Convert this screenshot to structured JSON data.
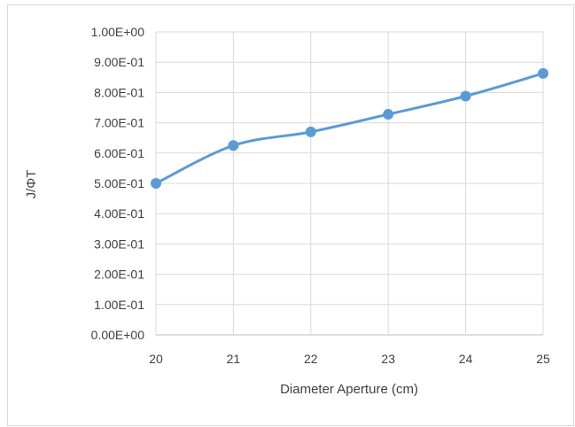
{
  "chart_data": {
    "type": "line",
    "title": "",
    "xlabel": "Diameter Aperture (cm)",
    "ylabel": "J/ΦT",
    "x": [
      20,
      21,
      22,
      23,
      24,
      25
    ],
    "series": [
      {
        "values": [
          0.5,
          0.625,
          0.67,
          0.728,
          0.788,
          0.863
        ]
      }
    ],
    "xlim": [
      20,
      25
    ],
    "ylim": [
      0,
      1
    ],
    "xticks": [
      "20",
      "21",
      "22",
      "23",
      "24",
      "25"
    ],
    "yticks": [
      "0.00E+00",
      "1.00E-01",
      "2.00E-01",
      "3.00E-01",
      "4.00E-01",
      "5.00E-01",
      "6.00E-01",
      "7.00E-01",
      "8.00E-01",
      "9.00E-01",
      "1.00E+00"
    ],
    "grid": true,
    "smooth": true,
    "legend": "none",
    "colors": {
      "series": "#5b9bd5",
      "grid": "#d9d9d9",
      "axis": "#bfbfbf",
      "text": "#404040"
    }
  }
}
